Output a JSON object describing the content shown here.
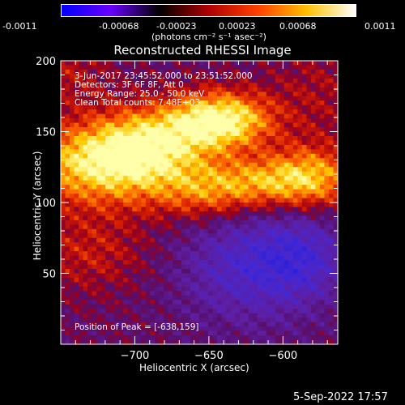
{
  "colorbar": {
    "tick_labels": [
      "-0.0011",
      "-0.00068",
      "-0.00023",
      "0.00023",
      "0.00068",
      "0.0011"
    ],
    "unit_label": "(photons cm⁻² s⁻¹ asec⁻²)",
    "colors": [
      "#0000ff",
      "#6a00ff",
      "#000000",
      "#b00000",
      "#ff4000",
      "#ffc000",
      "#ffffff"
    ]
  },
  "chart_data": {
    "type": "heatmap",
    "title": "Reconstructed RHESSI Image",
    "xlabel": "Heliocentric X (arcsec)",
    "ylabel": "Heliocentric Y (arcsec)",
    "xlim": [
      -750,
      -563
    ],
    "ylim": [
      0,
      200
    ],
    "x_ticks": [
      -700,
      -650,
      -600
    ],
    "y_ticks": [
      50,
      100,
      150,
      200
    ],
    "color_range": [
      -0.0011,
      0.0011
    ],
    "peak": [
      -638,
      159
    ],
    "annotations": [
      "3-Jun-2017 23:45:52.000 to 23:51:52.000",
      "Detectors: 3F 6F 8F, Att 0",
      "Energy Range: 25.0 - 50.0 keV",
      "Clean    Total counts: 7.48E+03",
      "Position of Peak = [-638,159]"
    ]
  },
  "footer": {
    "timestamp": "5-Sep-2022 17:57"
  }
}
